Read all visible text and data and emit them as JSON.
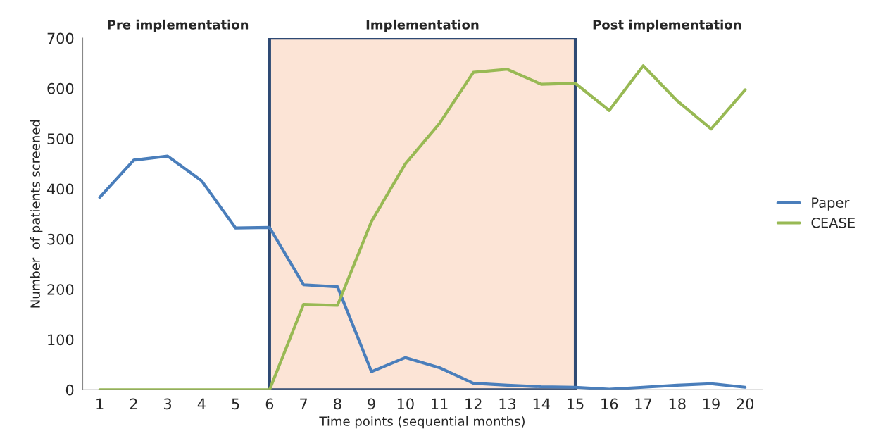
{
  "chart_data": {
    "type": "line",
    "xlabel": "Time points (sequential months)",
    "ylabel": "Number  of patients screened",
    "x": [
      1,
      2,
      3,
      4,
      5,
      6,
      7,
      8,
      9,
      10,
      11,
      12,
      13,
      14,
      15,
      16,
      17,
      18,
      19,
      20
    ],
    "series": [
      {
        "name": "Paper",
        "color": "#4a7ebb",
        "values": [
          383,
          457,
          465,
          416,
          322,
          323,
          209,
          205,
          36,
          64,
          44,
          13,
          9,
          6,
          5,
          1,
          5,
          9,
          12,
          5
        ]
      },
      {
        "name": "CEASE",
        "color": "#98b954",
        "values": [
          0,
          0,
          0,
          0,
          0,
          0,
          170,
          168,
          335,
          450,
          530,
          632,
          638,
          608,
          610,
          556,
          645,
          575,
          519,
          597
        ]
      }
    ],
    "xlim": [
      0.5,
      20.5
    ],
    "xticks": [
      1,
      2,
      3,
      4,
      5,
      6,
      7,
      8,
      9,
      10,
      11,
      12,
      13,
      14,
      15,
      16,
      17,
      18,
      19,
      20
    ],
    "ylim": [
      0,
      700
    ],
    "yticks": [
      0,
      100,
      200,
      300,
      400,
      500,
      600,
      700
    ],
    "bands": [
      {
        "axis": "x",
        "from": 6,
        "to": 15,
        "label": "Implementation",
        "color": "#fce4d6"
      }
    ],
    "annotations": [
      "Pre implementation",
      "Post implementation"
    ],
    "grid": false,
    "legend": "right",
    "marker": "none",
    "line_style": "solid"
  }
}
